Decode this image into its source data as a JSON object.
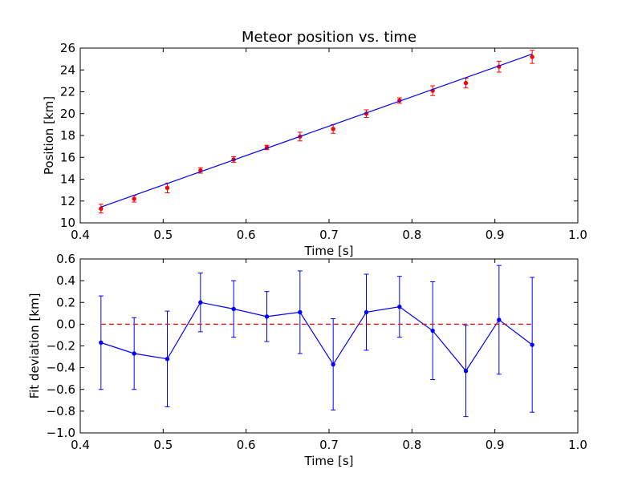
{
  "chart_data": [
    {
      "type": "line",
      "title": "Meteor position vs. time",
      "xlabel": "Time [s]",
      "ylabel": "Position [km]",
      "xlim": [
        0.4,
        1.0
      ],
      "ylim": [
        10,
        26
      ],
      "xticks": [
        "0.4",
        "0.5",
        "0.6",
        "0.7",
        "0.8",
        "0.9",
        "1.0"
      ],
      "yticks": [
        "10",
        "12",
        "14",
        "16",
        "18",
        "20",
        "22",
        "24",
        "26"
      ],
      "grid": false,
      "series": [
        {
          "kind": "errorbar-points",
          "color": "#ff0000",
          "x": [
            0.425,
            0.465,
            0.505,
            0.545,
            0.585,
            0.625,
            0.665,
            0.705,
            0.745,
            0.785,
            0.825,
            0.865,
            0.905,
            0.945
          ],
          "y": [
            11.3,
            12.2,
            13.2,
            14.8,
            15.8,
            16.9,
            17.9,
            18.6,
            20.0,
            21.2,
            22.1,
            22.8,
            24.3,
            25.2
          ],
          "err": [
            0.4,
            0.3,
            0.45,
            0.25,
            0.25,
            0.2,
            0.4,
            0.4,
            0.35,
            0.25,
            0.45,
            0.45,
            0.5,
            0.6
          ]
        },
        {
          "kind": "fit-line",
          "color": "#0000ff",
          "x": [
            0.425,
            0.945
          ],
          "y": [
            11.45,
            25.45
          ]
        }
      ]
    },
    {
      "type": "line",
      "title": "",
      "xlabel": "Time [s]",
      "ylabel": "Fit deviation [km]",
      "xlim": [
        0.4,
        1.0
      ],
      "ylim": [
        -1.0,
        0.6
      ],
      "xticks": [
        "0.4",
        "0.5",
        "0.6",
        "0.7",
        "0.8",
        "0.9",
        "1.0"
      ],
      "yticks": [
        "−1.0",
        "−0.8",
        "−0.6",
        "−0.4",
        "−0.2",
        "0.0",
        "0.2",
        "0.4",
        "0.6"
      ],
      "grid": false,
      "series": [
        {
          "kind": "errorbar-line",
          "color": "#0000ff",
          "x": [
            0.425,
            0.465,
            0.505,
            0.545,
            0.585,
            0.625,
            0.665,
            0.705,
            0.745,
            0.785,
            0.825,
            0.865,
            0.905,
            0.945
          ],
          "y": [
            -0.17,
            -0.27,
            -0.32,
            0.2,
            0.14,
            0.07,
            0.11,
            -0.37,
            0.11,
            0.16,
            -0.06,
            -0.43,
            0.04,
            -0.19
          ],
          "err": [
            0.43,
            0.33,
            0.44,
            0.27,
            0.26,
            0.23,
            0.38,
            0.42,
            0.35,
            0.28,
            0.45,
            0.42,
            0.5,
            0.62
          ]
        },
        {
          "kind": "reference-line",
          "color": "#ff0000",
          "style": "dashed",
          "x": [
            0.425,
            0.945
          ],
          "y": [
            0.0,
            0.0
          ]
        }
      ]
    }
  ]
}
